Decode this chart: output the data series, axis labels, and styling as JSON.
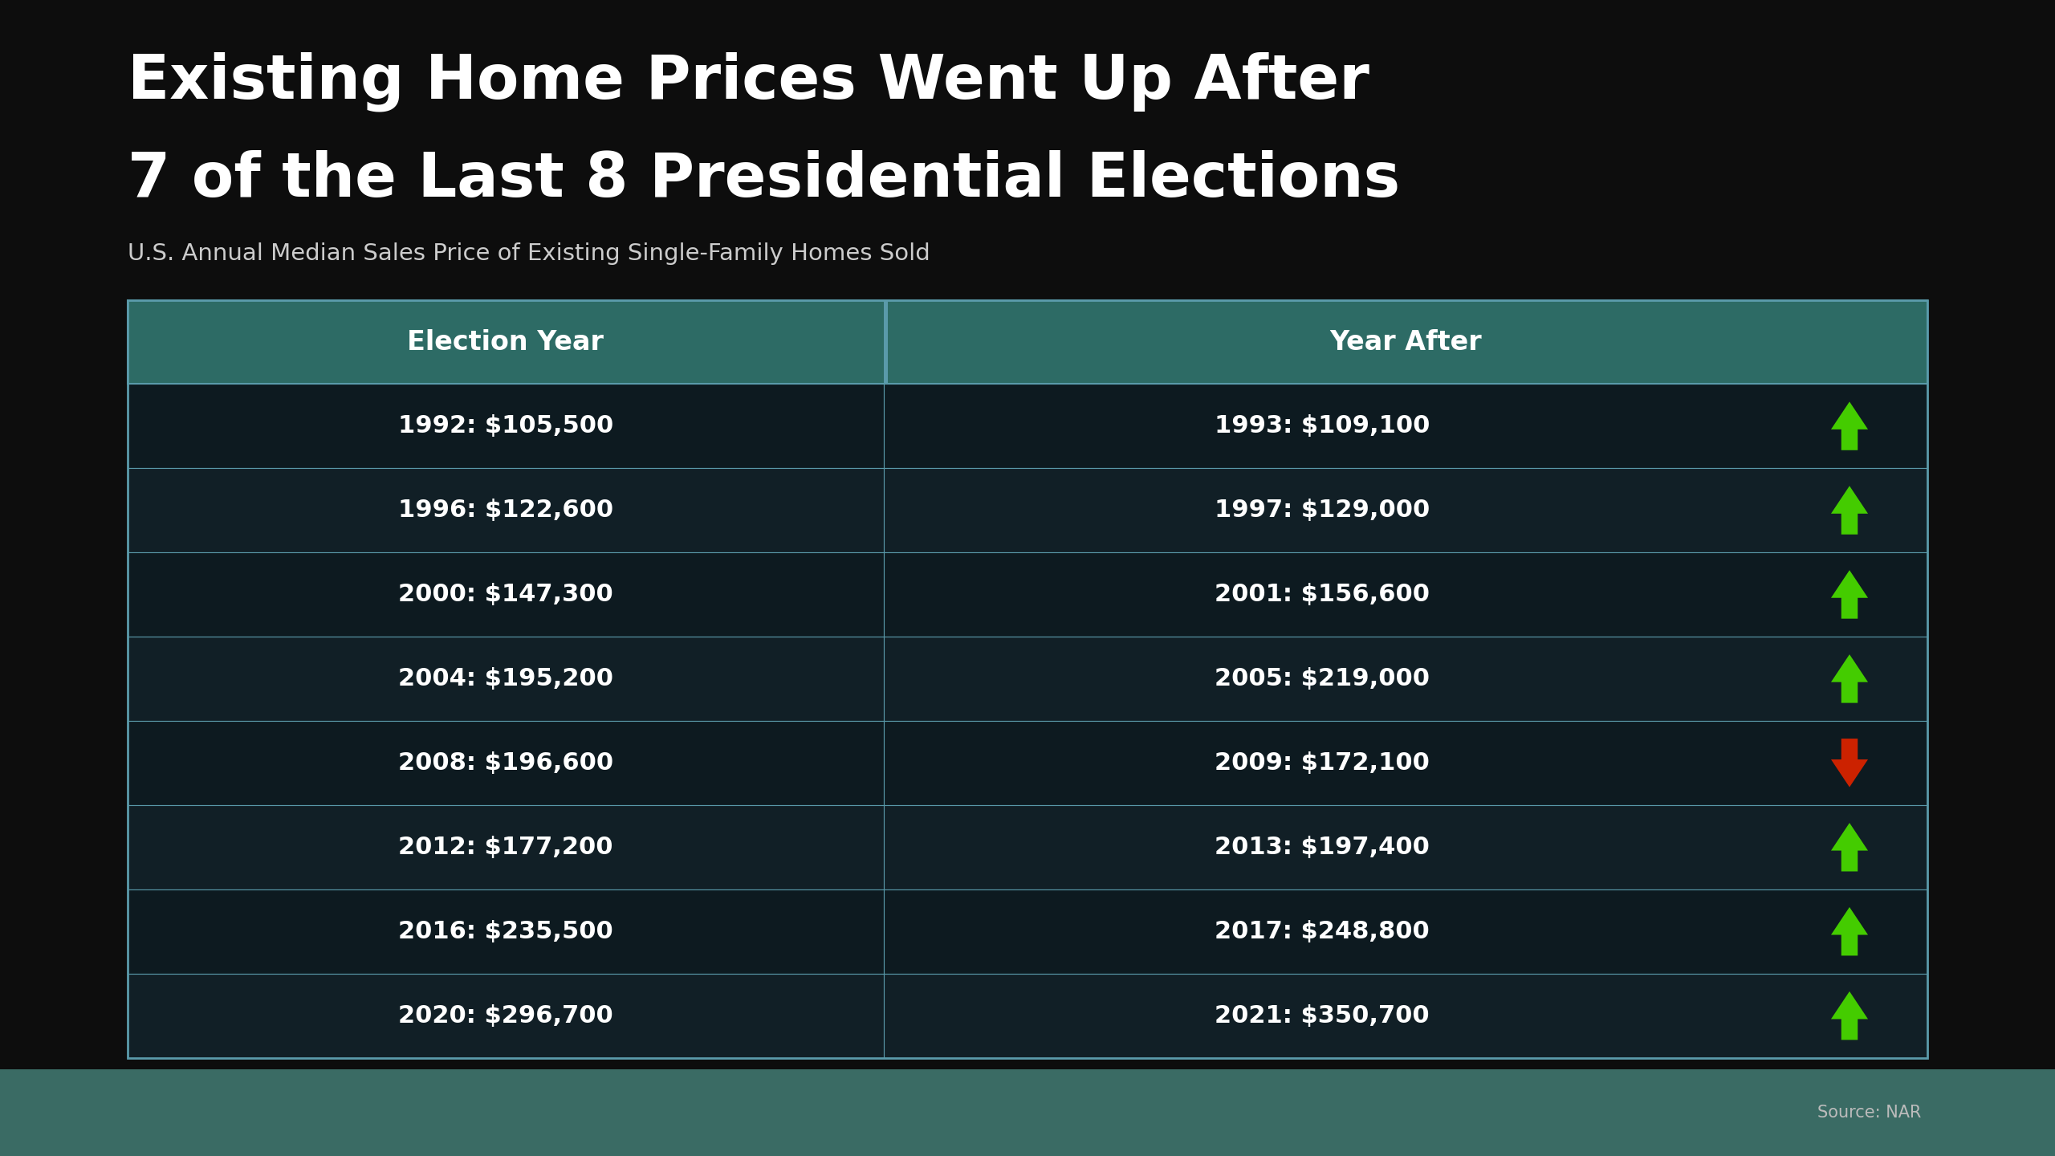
{
  "title_line1": "Existing Home Prices Went Up After",
  "title_line2": "7 of the Last 8 Presidential Elections",
  "subtitle": "U.S. Annual Median Sales Price of Existing Single-Family Homes Sold",
  "col1_header": "Election Year",
  "col2_header": "Year After",
  "rows": [
    {
      "election": "1992: $105,500",
      "year_after": "1993: $109,100",
      "up": true
    },
    {
      "election": "1996: $122,600",
      "year_after": "1997: $129,000",
      "up": true
    },
    {
      "election": "2000: $147,300",
      "year_after": "2001: $156,600",
      "up": true
    },
    {
      "election": "2004: $195,200",
      "year_after": "2005: $219,000",
      "up": true
    },
    {
      "election": "2008: $196,600",
      "year_after": "2009: $172,100",
      "up": false
    },
    {
      "election": "2012: $177,200",
      "year_after": "2013: $197,400",
      "up": true
    },
    {
      "election": "2016: $235,500",
      "year_after": "2017: $248,800",
      "up": true
    },
    {
      "election": "2020: $296,700",
      "year_after": "2021: $350,700",
      "up": true
    }
  ],
  "bg_color": "#0d0d0d",
  "footer_color": "#3a6b64",
  "header_color": "#2d6b65",
  "header_text_color": "#ffffff",
  "cell_bg_even": "#0d1a20",
  "cell_bg_odd": "#111f26",
  "border_color": "#5a9aaa",
  "title_color": "#ffffff",
  "subtitle_color": "#cccccc",
  "arrow_up_color": "#44cc00",
  "arrow_down_color": "#cc2200",
  "source_text": "Source: NAR",
  "source_color": "#bbbbbb"
}
